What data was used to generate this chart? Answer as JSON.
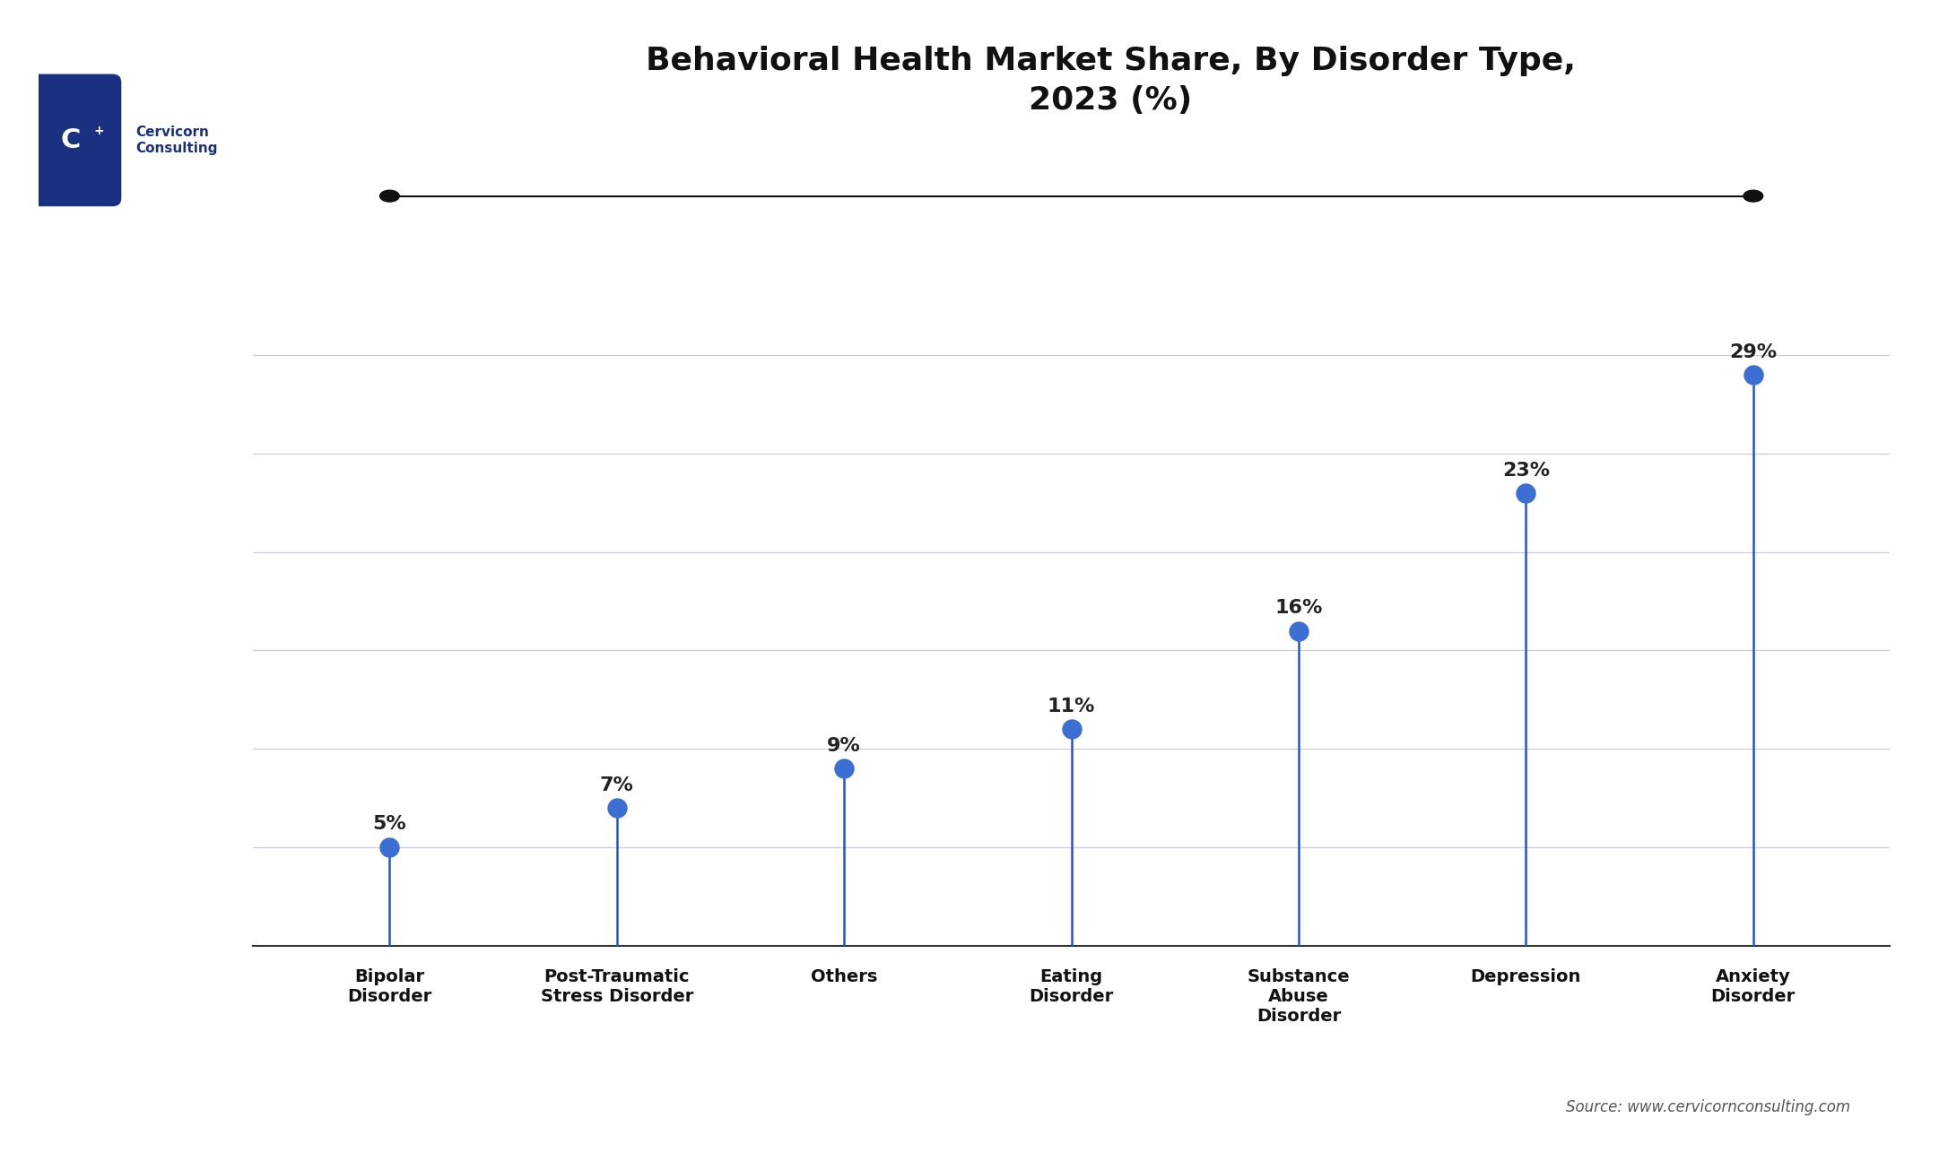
{
  "title": "Behavioral Health Market Share, By Disorder Type,\n2023 (%)",
  "categories": [
    "Bipolar\nDisorder",
    "Post-Traumatic\nStress Disorder",
    "Others",
    "Eating\nDisorder",
    "Substance\nAbuse\nDisorder",
    "Depression",
    "Anxiety\nDisorder"
  ],
  "values": [
    5,
    7,
    9,
    11,
    16,
    23,
    29
  ],
  "labels": [
    "5%",
    "7%",
    "9%",
    "11%",
    "16%",
    "23%",
    "29%"
  ],
  "stem_color": "#2255CC",
  "marker_color": "#3B6FD4",
  "top_line_color": "#111111",
  "title_fontsize": 26,
  "label_fontsize": 16,
  "tick_fontsize": 14,
  "source_text": "Source: www.cervicornconsulting.com",
  "background_color": "#FFFFFF",
  "grid_color": "#CCCCDD",
  "logo_box_color": "#1a3080",
  "logo_text_color": "#1a3080",
  "ylim": [
    0,
    34
  ]
}
